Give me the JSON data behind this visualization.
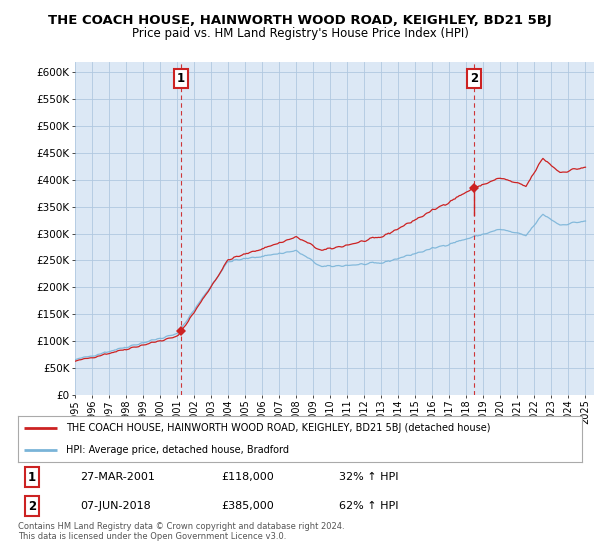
{
  "title": "THE COACH HOUSE, HAINWORTH WOOD ROAD, KEIGHLEY, BD21 5BJ",
  "subtitle": "Price paid vs. HM Land Registry's House Price Index (HPI)",
  "legend_line1": "THE COACH HOUSE, HAINWORTH WOOD ROAD, KEIGHLEY, BD21 5BJ (detached house)",
  "legend_line2": "HPI: Average price, detached house, Bradford",
  "annotation1": [
    "1",
    "27-MAR-2001",
    "£118,000",
    "32% ↑ HPI"
  ],
  "annotation2": [
    "2",
    "07-JUN-2018",
    "£385,000",
    "62% ↑ HPI"
  ],
  "footer": "Contains HM Land Registry data © Crown copyright and database right 2024.\nThis data is licensed under the Open Government Licence v3.0.",
  "hpi_color": "#7ab4d8",
  "price_color": "#cc2222",
  "marker_color": "#cc2222",
  "background_color": "#ffffff",
  "chart_bg_color": "#dce8f5",
  "grid_color": "#b0c8e0",
  "sale1_year": 2001.23,
  "sale1_price": 118000,
  "sale2_year": 2018.44,
  "sale2_price": 385000
}
